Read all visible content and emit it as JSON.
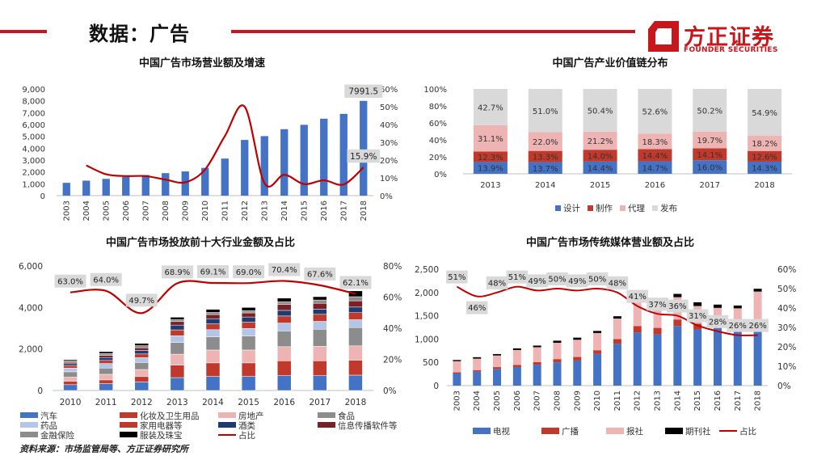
{
  "header": {
    "title": "数据：广告",
    "logo_cn": "方正证券",
    "logo_en": "FOUNDER SECURITIES"
  },
  "colors": {
    "brand_red": "#c8161d",
    "blue": "#4472c4",
    "red": "#c0392b",
    "pink": "#eeb4b4",
    "gray_light": "#d9d9d9",
    "gray": "#8c8c8c",
    "navy": "#1f3b73",
    "lavender": "#b4c6e7",
    "maroon": "#7b1f27",
    "black": "#000000",
    "line_red": "#c00000"
  },
  "source": "资料来源：市场监管局等、方正证券研究所",
  "chart_data": [
    {
      "id": "c1",
      "type": "bar",
      "title": "中国广告市场营业额及增速",
      "categories": [
        "2003",
        "2004",
        "2005",
        "2006",
        "2007",
        "2008",
        "2009",
        "2010",
        "2011",
        "2012",
        "2013",
        "2014",
        "2015",
        "2016",
        "2017",
        "2018"
      ],
      "series": [
        {
          "kind": "bar",
          "values": [
            1080,
            1265,
            1416,
            1573,
            1741,
            1899,
            2041,
            2341,
            3126,
            4698,
            5020,
            5606,
            5973,
            6489,
            6896,
            7991.5
          ]
        },
        {
          "kind": "line",
          "axis": "right",
          "values": [
            null,
            17,
            12,
            11,
            11,
            9,
            7.5,
            14.7,
            33.5,
            50,
            7,
            11.7,
            6.5,
            8.6,
            6.3,
            15.9
          ]
        }
      ],
      "ylim": [
        0,
        9000
      ],
      "y_ticks": [
        "0",
        "1,000",
        "2,000",
        "3,000",
        "4,000",
        "5,000",
        "6,000",
        "7,000",
        "8,000",
        "9,000"
      ],
      "y2lim": [
        0,
        60
      ],
      "y2_ticks": [
        "0%",
        "10%",
        "20%",
        "30%",
        "40%",
        "50%",
        "60%"
      ],
      "callouts": [
        {
          "index": 15,
          "series": 0,
          "text": "7991.5"
        },
        {
          "index": 15,
          "series": 1,
          "text": "15.9%"
        }
      ],
      "grid": false
    },
    {
      "id": "c2",
      "type": "bar",
      "stacked": true,
      "title": "中国广告产业价值链分布",
      "categories": [
        "2013",
        "2014",
        "2015",
        "2016",
        "2017",
        "2018"
      ],
      "series": [
        {
          "name": "设计",
          "color": "#4472c4",
          "values": [
            13.9,
            13.7,
            14.4,
            14.7,
            16.0,
            14.3
          ],
          "labels": [
            "13.9%",
            "13.7%",
            "14.4%",
            "14.7%",
            "16.0%",
            "14.3%"
          ]
        },
        {
          "name": "制作",
          "color": "#c0392b",
          "values": [
            12.3,
            13.3,
            14.0,
            14.4,
            14.1,
            12.6
          ],
          "labels": [
            "12.3%",
            "13.3%",
            "14.0%",
            "14.4%",
            "14.1%",
            "12.6%"
          ]
        },
        {
          "name": "代理",
          "color": "#eeb4b4",
          "values": [
            31.1,
            22.0,
            21.2,
            18.3,
            19.7,
            18.2
          ],
          "labels": [
            "31.1%",
            "22.0%",
            "21.2%",
            "18.3%",
            "19.7%",
            "18.2%"
          ]
        },
        {
          "name": "发布",
          "color": "#d9d9d9",
          "values": [
            42.7,
            51.0,
            50.4,
            52.6,
            50.2,
            54.9
          ],
          "labels": [
            "42.7%",
            "51.0%",
            "50.4%",
            "52.6%",
            "50.2%",
            "54.9%"
          ]
        }
      ],
      "ylim": [
        0,
        100
      ],
      "y_ticks": [
        "0%",
        "20%",
        "40%",
        "60%",
        "80%",
        "100%"
      ],
      "legend": "bottom",
      "grid": false
    },
    {
      "id": "c3",
      "type": "bar",
      "stacked": true,
      "title": "中国广告市场投放前十大行业金额及占比",
      "categories": [
        "2010",
        "2011",
        "2012",
        "2013",
        "2014",
        "2015",
        "2016",
        "2017",
        "2018"
      ],
      "series": [
        {
          "name": "汽车",
          "color": "#4472c4",
          "values": [
            280,
            330,
            410,
            620,
            680,
            680,
            730,
            730,
            740
          ]
        },
        {
          "name": "化妆及卫生用品",
          "color": "#c0392b",
          "values": [
            160,
            180,
            260,
            600,
            650,
            650,
            700,
            700,
            720
          ]
        },
        {
          "name": "房地产",
          "color": "#eeb4b4",
          "values": [
            200,
            270,
            340,
            530,
            620,
            620,
            680,
            700,
            690
          ]
        },
        {
          "name": "食品",
          "color": "#8c8c8c",
          "values": [
            260,
            300,
            340,
            560,
            640,
            680,
            760,
            820,
            880
          ]
        },
        {
          "name": "药品",
          "color": "#b4c6e7",
          "values": [
            180,
            220,
            230,
            330,
            340,
            360,
            380,
            380,
            380
          ]
        },
        {
          "name": "家用电器等",
          "color": "#c0392b",
          "values": [
            120,
            150,
            180,
            280,
            280,
            300,
            340,
            340,
            340
          ]
        },
        {
          "name": "酒类",
          "color": "#1f3b73",
          "values": [
            90,
            140,
            170,
            230,
            250,
            250,
            270,
            250,
            270
          ]
        },
        {
          "name": "信息传播软件等",
          "color": "#7b1f27",
          "values": [
            70,
            100,
            130,
            170,
            200,
            200,
            280,
            280,
            300
          ]
        },
        {
          "name": "金融保险",
          "color": "#8c8c8c",
          "values": [
            60,
            90,
            100,
            90,
            100,
            110,
            140,
            160,
            200
          ]
        },
        {
          "name": "服装及珠宝",
          "color": "#000000",
          "values": [
            60,
            90,
            110,
            120,
            150,
            150,
            170,
            160,
            280
          ]
        },
        {
          "name": "占比",
          "kind": "line",
          "axis": "right",
          "color": "#c00000",
          "values": [
            63.0,
            64.0,
            49.7,
            68.9,
            69.1,
            69.0,
            70.4,
            67.6,
            62.1
          ],
          "labels": [
            "63.0%",
            "64.0%",
            "49.7%",
            "68.9%",
            "69.1%",
            "69.0%",
            "70.4%",
            "67.6%",
            "62.1%"
          ]
        }
      ],
      "ylim": [
        0,
        6000
      ],
      "y_ticks": [
        "0",
        "2,000",
        "4,000",
        "6,000"
      ],
      "y2lim": [
        0,
        80
      ],
      "y2_ticks": [
        "0%",
        "20%",
        "40%",
        "60%",
        "80%"
      ],
      "legend": "bottom",
      "grid": false
    },
    {
      "id": "c4",
      "type": "bar",
      "stacked": true,
      "title": "中国广告市场传统媒体营业额及占比",
      "categories": [
        "2003",
        "2004",
        "2005",
        "2006",
        "2007",
        "2008",
        "2009",
        "2010",
        "2011",
        "2012",
        "2013",
        "2014",
        "2015",
        "2016",
        "2017",
        "2018"
      ],
      "series": [
        {
          "name": "电视",
          "color": "#4472c4",
          "values": [
            260,
            300,
            360,
            400,
            450,
            500,
            540,
            680,
            900,
            1140,
            1100,
            1280,
            1200,
            1240,
            1230,
            1240
          ]
        },
        {
          "name": "广播",
          "color": "#c0392b",
          "values": [
            25,
            30,
            38,
            45,
            55,
            70,
            75,
            80,
            100,
            140,
            140,
            140,
            130,
            170,
            150,
            180
          ]
        },
        {
          "name": "报社",
          "color": "#eeb4b4",
          "values": [
            240,
            250,
            250,
            320,
            320,
            350,
            370,
            370,
            440,
            500,
            520,
            480,
            380,
            260,
            280,
            600
          ]
        },
        {
          "name": "期刊社",
          "color": "#000000",
          "values": [
            25,
            30,
            30,
            35,
            35,
            45,
            45,
            45,
            50,
            70,
            80,
            70,
            80,
            70,
            60,
            60
          ]
        },
        {
          "name": "占比",
          "kind": "line",
          "axis": "right",
          "color": "#c00000",
          "values": [
            51,
            46,
            48,
            51,
            49,
            50,
            49,
            50,
            48,
            41,
            37,
            36,
            31,
            28,
            26,
            26
          ],
          "labels": [
            "51%",
            "46%",
            "48%",
            "51%",
            "49%",
            "50%",
            "49%",
            "50%",
            "48%",
            "41%",
            "37%",
            "36%",
            "31%",
            "28%",
            "26%",
            "26%"
          ]
        }
      ],
      "ylim": [
        0,
        2500
      ],
      "y_ticks": [
        "0",
        "500",
        "1,000",
        "1,500",
        "2,000",
        "2,500"
      ],
      "y2lim": [
        0,
        60
      ],
      "y2_ticks": [
        "0%",
        "10%",
        "20%",
        "30%",
        "40%",
        "50%",
        "60%"
      ],
      "legend": "bottom",
      "grid": false
    }
  ]
}
